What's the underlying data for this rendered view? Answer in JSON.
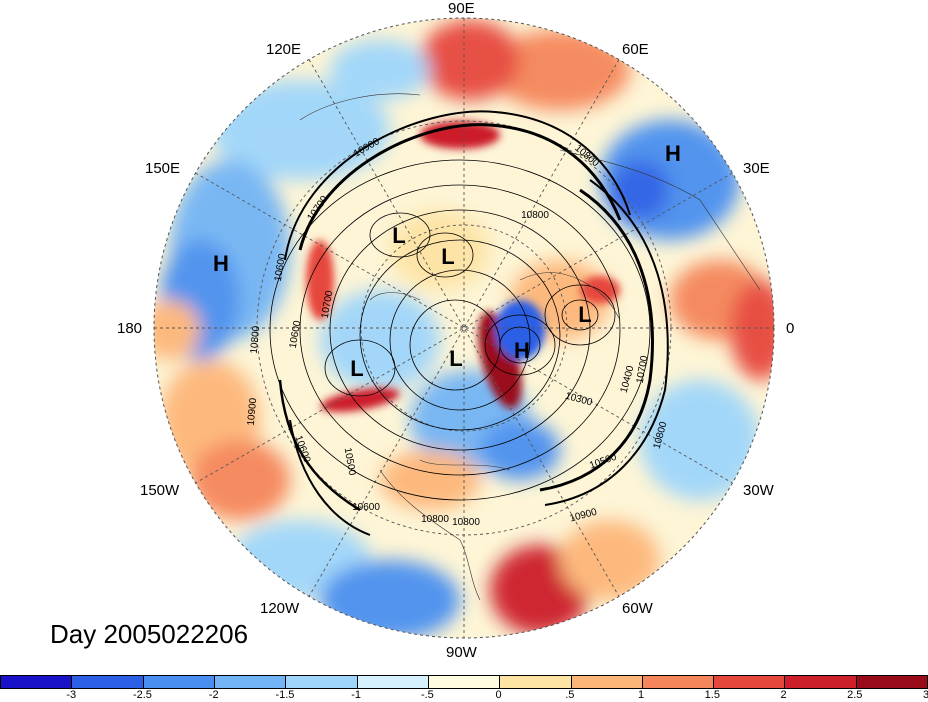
{
  "title": "Day 2005022206",
  "longitude_labels": [
    "90E",
    "60E",
    "30E",
    "0",
    "30W",
    "60W",
    "90W",
    "120W",
    "150W",
    "180",
    "150E",
    "120E"
  ],
  "pressure_systems": [
    "H",
    "H",
    "L",
    "L",
    "L",
    "L",
    "H",
    "L"
  ],
  "contour_labels": [
    "10900",
    "10800",
    "10700",
    "10600",
    "10800",
    "10600",
    "10700",
    "10800",
    "10900",
    "10500",
    "10600",
    "10800",
    "10700",
    "10800",
    "10400",
    "10300",
    "10500",
    "10900",
    "10800",
    "10600"
  ],
  "colorbar": {
    "colors": [
      "#1a12c8",
      "#2a5fe6",
      "#4a8ff0",
      "#72b4f5",
      "#9fd5fb",
      "#d5f1fd",
      "#fefbe0",
      "#fde3a4",
      "#fdb679",
      "#f5855a",
      "#e6473c",
      "#cc1f29",
      "#9a0b1a"
    ],
    "tick_labels": [
      "-3",
      "-2.5",
      "-2",
      "-1.5",
      "-1",
      "-.5",
      "0",
      ".5",
      "1",
      "1.5",
      "2",
      "2.5",
      "3"
    ]
  },
  "colors": {
    "blue": "#4a8ff0",
    "red": "#e6473c",
    "cream": "#fefbe0"
  }
}
